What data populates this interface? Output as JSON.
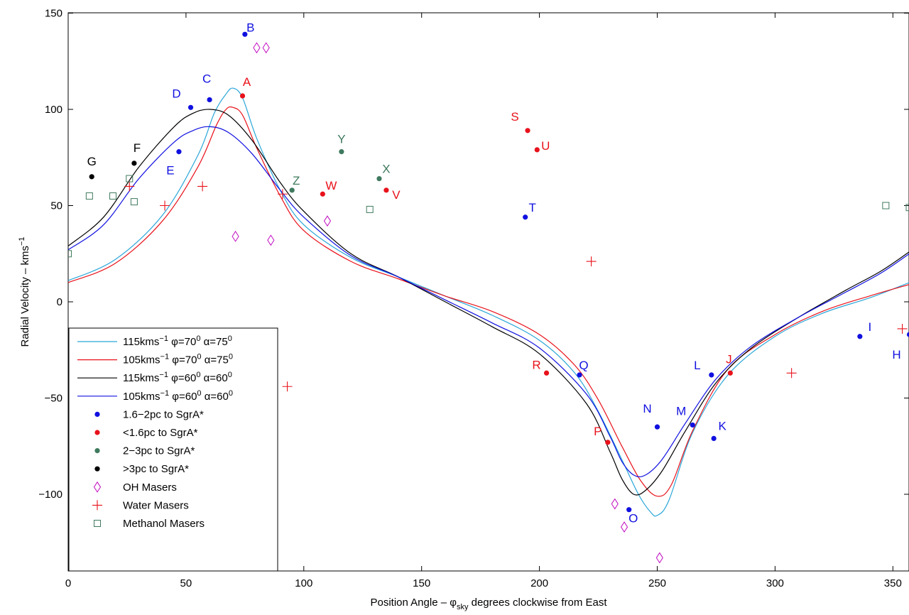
{
  "chart_data": {
    "type": "scatter",
    "title": "",
    "xlabel": {
      "main": "Position Angle – φ",
      "sub": "sky",
      "rest": " degrees clockwise from East"
    },
    "ylabel": {
      "main": "Radial Velocity – kms",
      "sup": "−1"
    },
    "xlim": [
      0,
      357
    ],
    "ylim": [
      -140,
      150
    ],
    "xticks": [
      0,
      50,
      100,
      150,
      200,
      250,
      300,
      350
    ],
    "xtick_labels": [
      "0",
      "50",
      "100",
      "150",
      "200",
      "250",
      "300",
      "350"
    ],
    "yticks": [
      -100,
      -50,
      0,
      50,
      100,
      150
    ],
    "ytick_labels": [
      "−100",
      "−50",
      "0",
      "50",
      "100",
      "150"
    ],
    "grid": false,
    "legend_position": "bottom-left",
    "colors": {
      "cyan": "#2aa6d8",
      "red": "#e8121b",
      "black": "#000000",
      "blue": "#1010e0",
      "green": "#3f7a5e",
      "magenta": "#c20fc2"
    },
    "curves": [
      {
        "legend": {
          "a": "115kms",
          "a_sup": "−1",
          "b": " φ=70",
          "b_sup": "0",
          "c": " α=75",
          "c_sup": "0"
        },
        "color": "#2aa6d8",
        "points": [
          [
            0,
            11
          ],
          [
            20,
            22
          ],
          [
            40,
            45
          ],
          [
            55,
            76
          ],
          [
            62,
            98
          ],
          [
            67,
            108
          ],
          [
            70,
            111
          ],
          [
            74,
            106
          ],
          [
            80,
            85
          ],
          [
            90,
            58
          ],
          [
            100,
            40
          ],
          [
            120,
            23
          ],
          [
            140,
            13
          ],
          [
            160,
            3
          ],
          [
            180,
            -7
          ],
          [
            200,
            -20
          ],
          [
            215,
            -37
          ],
          [
            225,
            -57
          ],
          [
            235,
            -82
          ],
          [
            242,
            -100
          ],
          [
            247,
            -109
          ],
          [
            250,
            -111
          ],
          [
            255,
            -103
          ],
          [
            265,
            -68
          ],
          [
            280,
            -38
          ],
          [
            300,
            -18
          ],
          [
            320,
            -6
          ],
          [
            340,
            2
          ],
          [
            357,
            10
          ]
        ]
      },
      {
        "legend": {
          "a": "105kms",
          "a_sup": "−1",
          "b": " φ=70",
          "b_sup": "0",
          "c": " α=75",
          "c_sup": "0"
        },
        "color": "#e8121b",
        "points": [
          [
            0,
            10
          ],
          [
            20,
            20
          ],
          [
            40,
            42
          ],
          [
            55,
            70
          ],
          [
            63,
            92
          ],
          [
            67,
            100
          ],
          [
            70,
            101
          ],
          [
            74,
            97
          ],
          [
            80,
            80
          ],
          [
            90,
            55
          ],
          [
            100,
            37
          ],
          [
            120,
            21
          ],
          [
            140,
            12
          ],
          [
            160,
            3
          ],
          [
            180,
            -5
          ],
          [
            200,
            -17
          ],
          [
            215,
            -33
          ],
          [
            225,
            -51
          ],
          [
            235,
            -75
          ],
          [
            243,
            -93
          ],
          [
            250,
            -101
          ],
          [
            256,
            -95
          ],
          [
            265,
            -67
          ],
          [
            280,
            -35
          ],
          [
            300,
            -17
          ],
          [
            320,
            -5
          ],
          [
            340,
            3
          ],
          [
            357,
            9
          ]
        ]
      },
      {
        "legend": {
          "a": "115kms",
          "a_sup": "−1",
          "b": " φ=60",
          "b_sup": "0",
          "c": " α=60",
          "c_sup": "0"
        },
        "color": "#000000",
        "points": [
          [
            0,
            29
          ],
          [
            15,
            44
          ],
          [
            30,
            70
          ],
          [
            45,
            91
          ],
          [
            53,
            98
          ],
          [
            60,
            100
          ],
          [
            68,
            97
          ],
          [
            78,
            84
          ],
          [
            90,
            62
          ],
          [
            100,
            47
          ],
          [
            120,
            25
          ],
          [
            140,
            13
          ],
          [
            160,
            0
          ],
          [
            180,
            -13
          ],
          [
            200,
            -27
          ],
          [
            220,
            -53
          ],
          [
            230,
            -78
          ],
          [
            235,
            -92
          ],
          [
            240,
            -100
          ],
          [
            245,
            -98
          ],
          [
            252,
            -88
          ],
          [
            262,
            -67
          ],
          [
            275,
            -42
          ],
          [
            290,
            -24
          ],
          [
            310,
            -8
          ],
          [
            330,
            6
          ],
          [
            345,
            16
          ],
          [
            357,
            26
          ]
        ]
      },
      {
        "legend": {
          "a": "105kms",
          "a_sup": "−1",
          "b": " φ=60",
          "b_sup": "0",
          "c": " α=60",
          "c_sup": "0"
        },
        "color": "#1010e0",
        "points": [
          [
            0,
            27
          ],
          [
            15,
            40
          ],
          [
            30,
            64
          ],
          [
            45,
            83
          ],
          [
            53,
            89
          ],
          [
            60,
            91
          ],
          [
            68,
            88
          ],
          [
            78,
            77
          ],
          [
            90,
            58
          ],
          [
            100,
            44
          ],
          [
            120,
            24
          ],
          [
            140,
            13
          ],
          [
            160,
            1
          ],
          [
            180,
            -11
          ],
          [
            200,
            -24
          ],
          [
            220,
            -48
          ],
          [
            230,
            -70
          ],
          [
            235,
            -83
          ],
          [
            240,
            -90
          ],
          [
            245,
            -90
          ],
          [
            252,
            -82
          ],
          [
            262,
            -63
          ],
          [
            275,
            -40
          ],
          [
            290,
            -23
          ],
          [
            310,
            -8
          ],
          [
            330,
            5
          ],
          [
            345,
            15
          ],
          [
            357,
            25
          ]
        ]
      }
    ],
    "scatter_groups": [
      {
        "legend": "1.6−2pc to SgrA*",
        "color": "#1010e0",
        "marker": "dot",
        "points": [
          {
            "label": "B",
            "x": 75,
            "y": 139,
            "dx": 8,
            "dy": -4
          },
          {
            "label": "C",
            "x": 60,
            "y": 105,
            "dx": -4,
            "dy": -24
          },
          {
            "label": "D",
            "x": 52,
            "y": 101,
            "dx": -20,
            "dy": -14
          },
          {
            "label": "E",
            "x": 47,
            "y": 78,
            "dx": -12,
            "dy": 32
          },
          {
            "label": "T",
            "x": 194,
            "y": 44,
            "dx": 10,
            "dy": -8
          },
          {
            "label": "Q",
            "x": 217,
            "y": -38,
            "dx": 6,
            "dy": -8
          },
          {
            "label": "N",
            "x": 250,
            "y": -65,
            "dx": -14,
            "dy": -20
          },
          {
            "label": "M",
            "x": 265,
            "y": -64,
            "dx": -16,
            "dy": -14
          },
          {
            "label": "L",
            "x": 273,
            "y": -38,
            "dx": -20,
            "dy": -8
          },
          {
            "label": "K",
            "x": 274,
            "y": -71,
            "dx": 12,
            "dy": -12
          },
          {
            "label": "O",
            "x": 238,
            "y": -108,
            "dx": 6,
            "dy": 18
          },
          {
            "label": "I",
            "x": 336,
            "y": -18,
            "dx": 14,
            "dy": -8
          },
          {
            "label": "H",
            "x": 357,
            "y": -17,
            "dx": -18,
            "dy": 34
          }
        ]
      },
      {
        "legend": "<1.6pc to SgrA*",
        "color": "#e8121b",
        "marker": "dot",
        "points": [
          {
            "label": "A",
            "x": 74,
            "y": 107,
            "dx": 6,
            "dy": -14
          },
          {
            "label": "W",
            "x": 108,
            "y": 56,
            "dx": 12,
            "dy": -6
          },
          {
            "label": "S",
            "x": 195,
            "y": 89,
            "dx": -18,
            "dy": -14
          },
          {
            "label": "U",
            "x": 199,
            "y": 79,
            "dx": 12,
            "dy": 0
          },
          {
            "label": "V",
            "x": 135,
            "y": 58,
            "dx": 14,
            "dy": 12
          },
          {
            "label": "R",
            "x": 203,
            "y": -37,
            "dx": -14,
            "dy": -6
          },
          {
            "label": "P",
            "x": 229,
            "y": -73,
            "dx": -14,
            "dy": -10
          },
          {
            "label": "J",
            "x": 281,
            "y": -37,
            "dx": -2,
            "dy": -14
          }
        ]
      },
      {
        "legend": "2−3pc to SgrA*",
        "color": "#3f7a5e",
        "marker": "dot",
        "points": [
          {
            "label": "Y",
            "x": 116,
            "y": 78,
            "dx": 0,
            "dy": -12
          },
          {
            "label": "X",
            "x": 132,
            "y": 64,
            "dx": 10,
            "dy": -8
          },
          {
            "label": "Z",
            "x": 95,
            "y": 58,
            "dx": 6,
            "dy": -8
          }
        ]
      },
      {
        "legend": ">3pc to SgrA*",
        "color": "#000000",
        "marker": "dot",
        "points": [
          {
            "label": "G",
            "x": 10,
            "y": 65,
            "dx": 0,
            "dy": -16
          },
          {
            "label": "F",
            "x": 28,
            "y": 72,
            "dx": 4,
            "dy": -16
          }
        ]
      },
      {
        "legend": "OH Masers",
        "color": "#c20fc2",
        "marker": "diamond",
        "points": [
          {
            "x": 80,
            "y": 132
          },
          {
            "x": 84,
            "y": 132
          },
          {
            "x": 71,
            "y": 34
          },
          {
            "x": 86,
            "y": 32
          },
          {
            "x": 110,
            "y": 42
          },
          {
            "x": 232,
            "y": -105
          },
          {
            "x": 236,
            "y": -117
          },
          {
            "x": 251,
            "y": -133
          }
        ]
      },
      {
        "legend": "Water Masers",
        "color": "#e8121b",
        "marker": "plus",
        "points": [
          {
            "x": 26,
            "y": 60
          },
          {
            "x": 41,
            "y": 50
          },
          {
            "x": 57,
            "y": 60
          },
          {
            "x": 91,
            "y": 56
          },
          {
            "x": 93,
            "y": -44
          },
          {
            "x": 222,
            "y": 21
          },
          {
            "x": 307,
            "y": -37
          },
          {
            "x": 354,
            "y": -14
          }
        ]
      },
      {
        "legend": "Methanol Masers",
        "color": "#3f7a5e",
        "marker": "square",
        "points": [
          {
            "x": 0,
            "y": 25
          },
          {
            "x": 9,
            "y": 55
          },
          {
            "x": 19,
            "y": 55
          },
          {
            "x": 26,
            "y": 64
          },
          {
            "x": 28,
            "y": 52
          },
          {
            "x": 128,
            "y": 48
          },
          {
            "x": 347,
            "y": 50
          },
          {
            "x": 357,
            "y": 49
          }
        ]
      }
    ]
  }
}
